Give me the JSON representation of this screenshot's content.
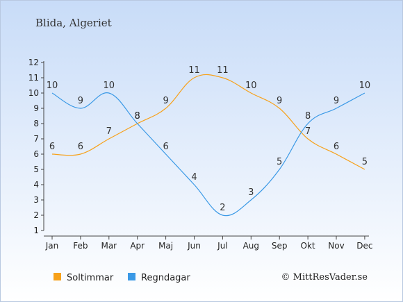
{
  "header": {
    "title": "Blida, Algeriet"
  },
  "footer": {
    "credit": "© MittResVader.se"
  },
  "chart_data": {
    "type": "line",
    "title": "Blida, Algeriet",
    "categories": [
      "Jan",
      "Feb",
      "Mar",
      "Apr",
      "Maj",
      "Jun",
      "Jul",
      "Aug",
      "Sep",
      "Okt",
      "Nov",
      "Dec"
    ],
    "ylim": [
      1,
      12
    ],
    "yticks": [
      1,
      2,
      3,
      4,
      5,
      6,
      7,
      8,
      9,
      10,
      11,
      12
    ],
    "grid": false,
    "legend_position": "bottom",
    "series": [
      {
        "name": "Soltimmar",
        "color": "#f7a11a",
        "values": [
          6,
          6,
          7,
          8,
          9,
          11,
          11,
          10,
          9,
          7,
          6,
          5
        ]
      },
      {
        "name": "Regndagar",
        "color": "#3a99e6",
        "values": [
          10,
          9,
          10,
          8,
          6,
          4,
          2,
          3,
          5,
          8,
          9,
          10
        ]
      }
    ]
  }
}
